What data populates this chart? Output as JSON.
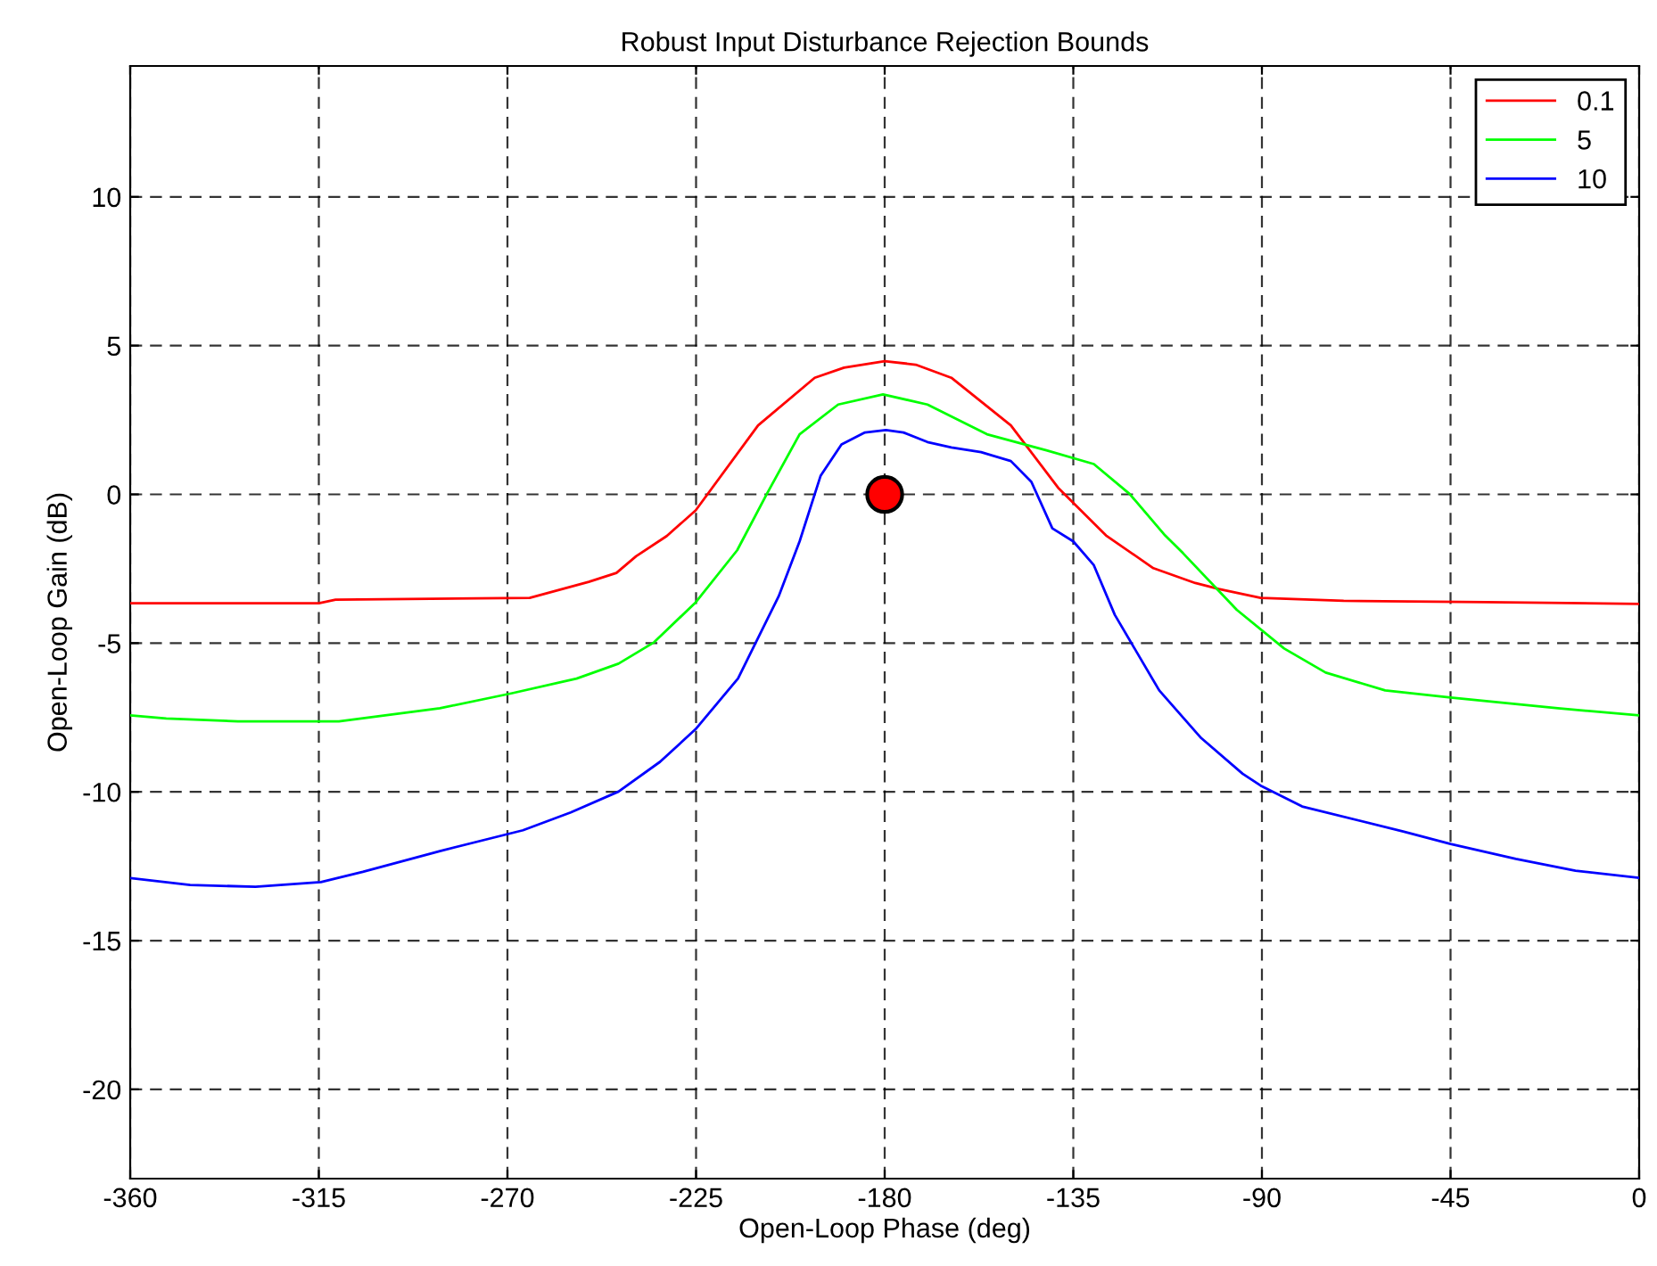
{
  "chart_data": {
    "type": "line",
    "title": "Robust Input Disturbance Rejection Bounds",
    "xlabel": "Open-Loop Phase (deg)",
    "ylabel": "Open-Loop Gain (dB)",
    "xlim": [
      -360,
      0
    ],
    "ylim": [
      -23,
      14.4
    ],
    "xticks": [
      -360,
      -315,
      -270,
      -225,
      -180,
      -135,
      -90,
      -45,
      0
    ],
    "yticks": [
      -20,
      -15,
      -10,
      -5,
      0,
      5,
      10
    ],
    "grid": true,
    "legend": "top right",
    "line_style": "solid",
    "marker": "none",
    "series": [
      {
        "name": "0.1",
        "color": "#ff0000",
        "x": [
          -360,
          -315,
          -311,
          -264.7,
          -250.6,
          -244,
          -239.3,
          -232,
          -225.1,
          -210.2,
          -196.7,
          -189.7,
          -180,
          -172.6,
          -164.1,
          -149.9,
          -138.6,
          -127.2,
          -115.9,
          -105.9,
          -100.3,
          -90.3,
          -70.5,
          -36.5,
          0
        ],
        "values": [
          -3.66,
          -3.66,
          -3.54,
          -3.48,
          -2.94,
          -2.64,
          -2.08,
          -1.4,
          -0.54,
          2.32,
          3.92,
          4.26,
          4.48,
          4.36,
          3.92,
          2.32,
          0.22,
          -1.38,
          -2.48,
          -2.98,
          -3.18,
          -3.48,
          -3.58,
          -3.62,
          -3.68
        ]
      },
      {
        "name": "5",
        "color": "#00ff00",
        "x": [
          -360,
          -351.4,
          -334.3,
          -310.2,
          -286.1,
          -269.1,
          -253.5,
          -243.5,
          -235,
          -225.1,
          -215.2,
          -208.1,
          -200.3,
          -191.1,
          -180.4,
          -169.8,
          -155.6,
          -141.4,
          -130.1,
          -121.6,
          -113.1,
          -108.8,
          -96,
          -84.7,
          -74.8,
          -60.6,
          -45,
          -19.4,
          0
        ],
        "values": [
          -7.43,
          -7.53,
          -7.63,
          -7.63,
          -7.19,
          -6.69,
          -6.19,
          -5.69,
          -4.97,
          -3.63,
          -1.88,
          0.02,
          2.02,
          3.02,
          3.36,
          3.02,
          2.02,
          1.48,
          1.02,
          0.02,
          -1.38,
          -1.98,
          -3.88,
          -5.18,
          -5.99,
          -6.59,
          -6.83,
          -7.19,
          -7.43
        ]
      },
      {
        "name": "10",
        "color": "#0000ff",
        "x": [
          -360,
          -345.7,
          -330.1,
          -314.5,
          -304.5,
          -286.1,
          -266.3,
          -254.9,
          -243.5,
          -233.6,
          -225.1,
          -215,
          -205.3,
          -200.3,
          -195.3,
          -190.3,
          -184.7,
          -179.7,
          -175.5,
          -169.8,
          -164.1,
          -157,
          -149.9,
          -145,
          -140,
          -135,
          -130.1,
          -125.1,
          -114.5,
          -104.5,
          -94.6,
          -90.3,
          -80.4,
          -56.3,
          -45,
          -29.4,
          -15.2,
          0
        ],
        "values": [
          -12.9,
          -13.13,
          -13.19,
          -13.03,
          -12.69,
          -11.99,
          -11.29,
          -10.69,
          -9.99,
          -8.99,
          -7.89,
          -6.19,
          -3.43,
          -1.58,
          0.62,
          1.68,
          2.08,
          2.16,
          2.08,
          1.76,
          1.58,
          1.42,
          1.12,
          0.42,
          -1.14,
          -1.58,
          -2.38,
          -4.05,
          -6.59,
          -8.19,
          -9.39,
          -9.79,
          -10.49,
          -11.33,
          -11.75,
          -12.25,
          -12.65,
          -12.89
        ]
      },
      {
        "type": "scatter",
        "color": "#ff0000",
        "marker": "circle",
        "x": [
          -180
        ],
        "values": [
          0
        ]
      }
    ]
  }
}
